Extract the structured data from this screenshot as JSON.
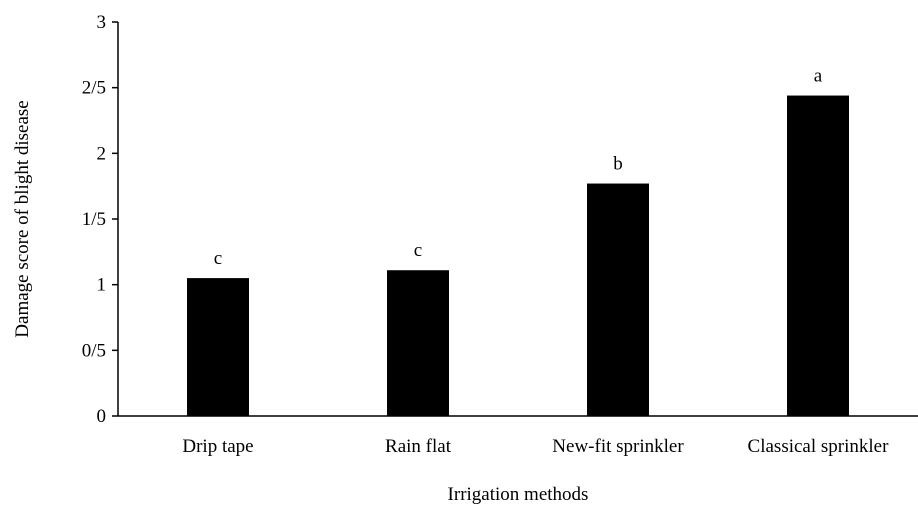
{
  "chart_data": {
    "type": "bar",
    "title": "",
    "xlabel": "Irrigation methods",
    "ylabel": "Damage score of blight disease",
    "categories": [
      "Drip tape",
      "Rain flat",
      "New-fit sprinkler",
      "Classical sprinkler"
    ],
    "values": [
      1.05,
      1.11,
      1.77,
      2.44
    ],
    "data_labels": [
      "c",
      "c",
      "b",
      "a"
    ],
    "ylim": [
      0,
      3
    ],
    "yticks": [
      {
        "value": 0,
        "label": "0"
      },
      {
        "value": 0.5,
        "label": "0/5"
      },
      {
        "value": 1,
        "label": "1"
      },
      {
        "value": 1.5,
        "label": "1/5"
      },
      {
        "value": 2,
        "label": "2"
      },
      {
        "value": 2.5,
        "label": "2/5"
      },
      {
        "value": 3,
        "label": "3"
      }
    ],
    "grid": false,
    "legend": "none",
    "bar_color": "#000000"
  }
}
